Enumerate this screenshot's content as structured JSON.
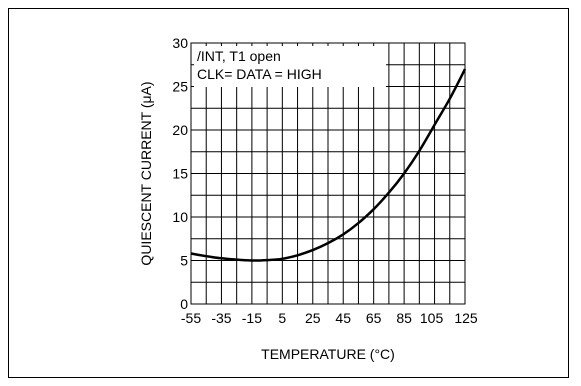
{
  "chart_data": {
    "type": "line",
    "xlabel": "TEMPERATURE (°C)",
    "ylabel": "QUIESCENT CURRENT (μA)",
    "annotation_lines": [
      "/INT, T1 open",
      "CLK= DATA = HIGH"
    ],
    "xlim": [
      -55,
      125
    ],
    "ylim": [
      0,
      30
    ],
    "x_ticks": [
      "-55",
      "-35",
      "-15",
      "5",
      "25",
      "45",
      "65",
      "85",
      "105",
      "125"
    ],
    "y_ticks": [
      "0",
      "5",
      "10",
      "15",
      "20",
      "25",
      "30"
    ],
    "grid": true,
    "series": [
      {
        "x": [
          -55,
          -45,
          -35,
          -25,
          -15,
          -5,
          5,
          15,
          25,
          35,
          45,
          55,
          65,
          75,
          85,
          95,
          105,
          115,
          125
        ],
        "y": [
          5.8,
          5.5,
          5.25,
          5.1,
          5.0,
          5.05,
          5.2,
          5.6,
          6.2,
          7.0,
          8.0,
          9.3,
          10.9,
          12.8,
          15.0,
          17.6,
          20.6,
          23.6,
          27.0
        ]
      }
    ],
    "line_color": "#000000"
  }
}
